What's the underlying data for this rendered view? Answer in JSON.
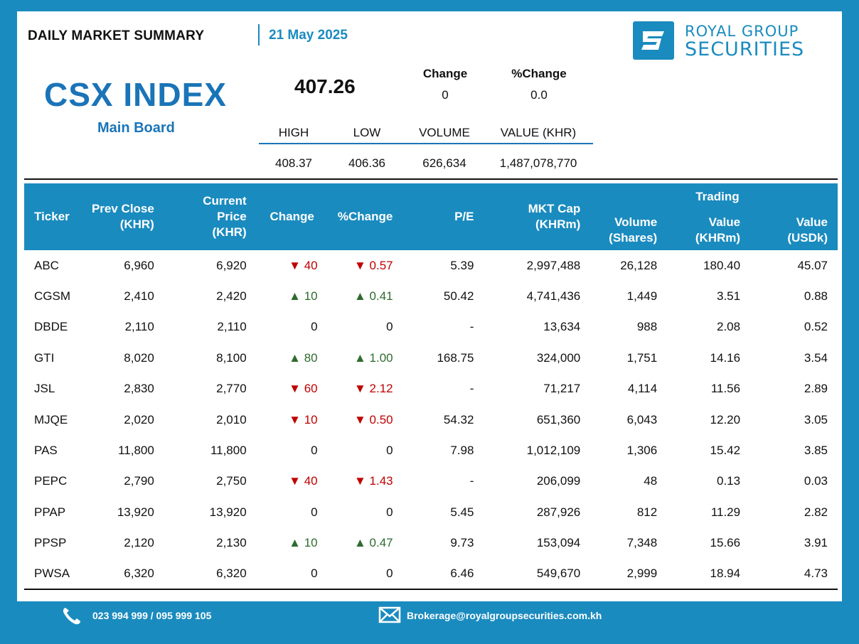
{
  "header": {
    "title": "DAILY MARKET SUMMARY",
    "date": "21 May 2025"
  },
  "brand": {
    "line1": "ROYAL GROUP",
    "line2": "SECURITIES",
    "logo_icon": "rgs-logo-icon",
    "color": "#1a8bbf"
  },
  "index": {
    "name": "CSX INDEX",
    "board": "Main Board",
    "value": "407.26",
    "change_label": "Change",
    "change": "0",
    "pct_change_label": "%Change",
    "pct_change": "0.0",
    "stats_headers": [
      "HIGH",
      "LOW",
      "VOLUME",
      "VALUE (KHR)"
    ],
    "stats_values": [
      "408.37",
      "406.36",
      "626,634",
      "1,487,078,770"
    ]
  },
  "table": {
    "headers": {
      "ticker": "Ticker",
      "prev_close": [
        "Prev Close",
        "(KHR)"
      ],
      "current_price": [
        "Current Price",
        "(KHR)"
      ],
      "change": "Change",
      "pct_change": "%Change",
      "pe": "P/E",
      "mkt_cap": [
        "MKT Cap",
        "(KHRm)"
      ],
      "volume": [
        "Volume",
        "(Shares)"
      ],
      "trading_group": "Trading",
      "value_khr": [
        "Value",
        "(KHRm)"
      ],
      "value_usd": [
        "Value",
        "(USDk)"
      ]
    },
    "rows": [
      {
        "ticker": "ABC",
        "prev": "6,960",
        "cur": "6,920",
        "dir": "down",
        "chg": "40",
        "pct": "0.57",
        "pe": "5.39",
        "cap": "2,997,488",
        "vol": "26,128",
        "vk": "180.40",
        "vu": "45.07"
      },
      {
        "ticker": "CGSM",
        "prev": "2,410",
        "cur": "2,420",
        "dir": "up",
        "chg": "10",
        "pct": "0.41",
        "pe": "50.42",
        "cap": "4,741,436",
        "vol": "1,449",
        "vk": "3.51",
        "vu": "0.88"
      },
      {
        "ticker": "DBDE",
        "prev": "2,110",
        "cur": "2,110",
        "dir": "flat",
        "chg": "0",
        "pct": "0",
        "pe": "-",
        "cap": "13,634",
        "vol": "988",
        "vk": "2.08",
        "vu": "0.52"
      },
      {
        "ticker": "GTI",
        "prev": "8,020",
        "cur": "8,100",
        "dir": "up",
        "chg": "80",
        "pct": "1.00",
        "pe": "168.75",
        "cap": "324,000",
        "vol": "1,751",
        "vk": "14.16",
        "vu": "3.54"
      },
      {
        "ticker": "JSL",
        "prev": "2,830",
        "cur": "2,770",
        "dir": "down",
        "chg": "60",
        "pct": "2.12",
        "pe": "-",
        "cap": "71,217",
        "vol": "4,114",
        "vk": "11.56",
        "vu": "2.89"
      },
      {
        "ticker": "MJQE",
        "prev": "2,020",
        "cur": "2,010",
        "dir": "down",
        "chg": "10",
        "pct": "0.50",
        "pe": "54.32",
        "cap": "651,360",
        "vol": "6,043",
        "vk": "12.20",
        "vu": "3.05"
      },
      {
        "ticker": "PAS",
        "prev": "11,800",
        "cur": "11,800",
        "dir": "flat",
        "chg": "0",
        "pct": "0",
        "pe": "7.98",
        "cap": "1,012,109",
        "vol": "1,306",
        "vk": "15.42",
        "vu": "3.85"
      },
      {
        "ticker": "PEPC",
        "prev": "2,790",
        "cur": "2,750",
        "dir": "down",
        "chg": "40",
        "pct": "1.43",
        "pe": "-",
        "cap": "206,099",
        "vol": "48",
        "vk": "0.13",
        "vu": "0.03"
      },
      {
        "ticker": "PPAP",
        "prev": "13,920",
        "cur": "13,920",
        "dir": "flat",
        "chg": "0",
        "pct": "0",
        "pe": "5.45",
        "cap": "287,926",
        "vol": "812",
        "vk": "11.29",
        "vu": "2.82"
      },
      {
        "ticker": "PPSP",
        "prev": "2,120",
        "cur": "2,130",
        "dir": "up",
        "chg": "10",
        "pct": "0.47",
        "pe": "9.73",
        "cap": "153,094",
        "vol": "7,348",
        "vk": "15.66",
        "vu": "3.91"
      },
      {
        "ticker": "PWSA",
        "prev": "6,320",
        "cur": "6,320",
        "dir": "flat",
        "chg": "0",
        "pct": "0",
        "pe": "6.46",
        "cap": "549,670",
        "vol": "2,999",
        "vk": "18.94",
        "vu": "4.73"
      }
    ]
  },
  "footer": {
    "phone": "023 994 999 / 095 999 105",
    "phone_icon": "phone-icon",
    "email": "Brokerage@royalgroupsecurities.com.kh",
    "email_icon": "mail-icon"
  },
  "colors": {
    "accent": "#1a8bbf",
    "title_blue": "#1a74b8",
    "up": "#2e6b2e",
    "down": "#c00000"
  }
}
